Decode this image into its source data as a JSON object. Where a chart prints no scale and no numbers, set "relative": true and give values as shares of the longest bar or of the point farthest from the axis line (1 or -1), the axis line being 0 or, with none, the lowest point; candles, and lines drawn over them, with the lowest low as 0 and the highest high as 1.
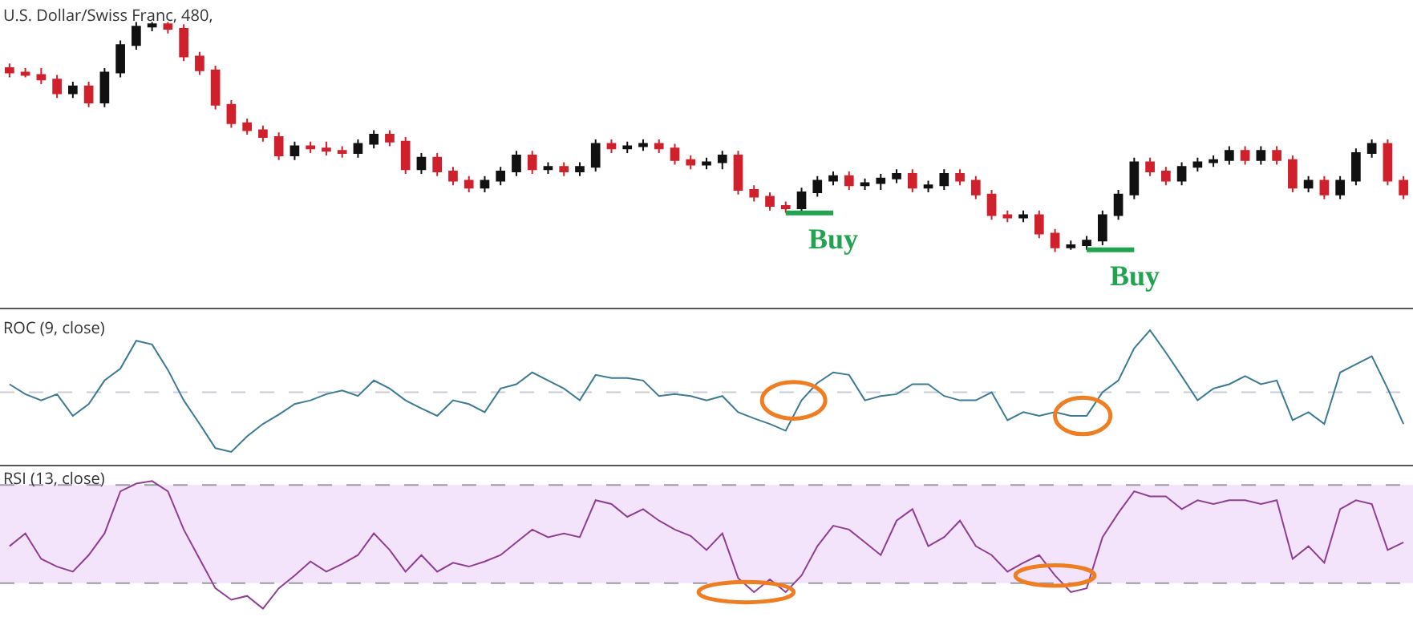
{
  "chart_data": [
    {
      "type": "candlestick",
      "title": "U.S. Dollar/Swiss Franc, 480,",
      "relative": true,
      "annotations": [
        "Buy",
        "Buy"
      ],
      "categories": [
        null,
        null,
        null,
        null,
        null,
        null,
        null,
        null,
        null,
        null,
        null,
        null,
        null,
        null,
        null,
        null,
        null,
        null,
        null,
        null,
        null,
        null,
        null,
        null,
        null,
        null,
        null,
        null,
        null,
        null,
        null,
        null,
        null,
        null,
        null,
        null,
        null,
        null,
        null,
        null,
        null,
        null,
        null,
        null,
        null,
        null,
        null,
        null,
        null,
        null,
        null,
        null,
        null,
        null,
        null,
        null,
        null,
        null,
        null,
        null,
        null,
        null,
        null,
        null,
        null,
        null,
        null,
        null,
        null,
        null,
        null,
        null,
        null,
        null,
        null,
        null,
        null,
        null,
        null,
        null,
        null,
        null,
        null,
        null,
        null,
        null,
        null,
        null,
        null
      ],
      "ohlc": [
        [
          0.8,
          0.82,
          0.76,
          0.78
        ],
        [
          0.78,
          0.8,
          0.76,
          0.77
        ],
        [
          0.77,
          0.8,
          0.73,
          0.75
        ],
        [
          0.75,
          0.77,
          0.67,
          0.69
        ],
        [
          0.69,
          0.74,
          0.67,
          0.72
        ],
        [
          0.72,
          0.74,
          0.63,
          0.65
        ],
        [
          0.65,
          0.8,
          0.63,
          0.78
        ],
        [
          0.78,
          0.92,
          0.76,
          0.9
        ],
        [
          0.9,
          1.0,
          0.88,
          0.98
        ],
        [
          0.98,
          1.0,
          0.96,
          0.99
        ],
        [
          0.99,
          1.0,
          0.95,
          0.97
        ],
        [
          0.97,
          0.99,
          0.83,
          0.85
        ],
        [
          0.85,
          0.87,
          0.77,
          0.79
        ],
        [
          0.79,
          0.81,
          0.62,
          0.64
        ],
        [
          0.64,
          0.66,
          0.54,
          0.56
        ],
        [
          0.56,
          0.58,
          0.51,
          0.53
        ],
        [
          0.53,
          0.55,
          0.48,
          0.5
        ],
        [
          0.5,
          0.52,
          0.4,
          0.42
        ],
        [
          0.42,
          0.48,
          0.4,
          0.46
        ],
        [
          0.46,
          0.48,
          0.43,
          0.45
        ],
        [
          0.45,
          0.48,
          0.42,
          0.44
        ],
        [
          0.44,
          0.46,
          0.41,
          0.43
        ],
        [
          0.43,
          0.49,
          0.41,
          0.47
        ],
        [
          0.47,
          0.53,
          0.45,
          0.51
        ],
        [
          0.51,
          0.53,
          0.46,
          0.48
        ],
        [
          0.48,
          0.5,
          0.34,
          0.36
        ],
        [
          0.36,
          0.43,
          0.34,
          0.41
        ],
        [
          0.41,
          0.43,
          0.33,
          0.35
        ],
        [
          0.35,
          0.37,
          0.29,
          0.31
        ],
        [
          0.31,
          0.33,
          0.26,
          0.28
        ],
        [
          0.28,
          0.33,
          0.26,
          0.31
        ],
        [
          0.31,
          0.37,
          0.29,
          0.35
        ],
        [
          0.35,
          0.44,
          0.33,
          0.42
        ],
        [
          0.42,
          0.44,
          0.34,
          0.36
        ],
        [
          0.36,
          0.39,
          0.34,
          0.37
        ],
        [
          0.37,
          0.39,
          0.33,
          0.35
        ],
        [
          0.35,
          0.39,
          0.33,
          0.37
        ],
        [
          0.37,
          0.49,
          0.35,
          0.47
        ],
        [
          0.47,
          0.49,
          0.43,
          0.45
        ],
        [
          0.45,
          0.48,
          0.43,
          0.46
        ],
        [
          0.46,
          0.49,
          0.44,
          0.47
        ],
        [
          0.47,
          0.49,
          0.43,
          0.45
        ],
        [
          0.45,
          0.47,
          0.38,
          0.4
        ],
        [
          0.4,
          0.42,
          0.36,
          0.38
        ],
        [
          0.38,
          0.41,
          0.36,
          0.39
        ],
        [
          0.39,
          0.44,
          0.36,
          0.42
        ],
        [
          0.42,
          0.44,
          0.25,
          0.27
        ],
        [
          0.27,
          0.29,
          0.22,
          0.24
        ],
        [
          0.24,
          0.26,
          0.18,
          0.2
        ],
        [
          0.2,
          0.22,
          0.17,
          0.19
        ],
        [
          0.19,
          0.28,
          0.17,
          0.26
        ],
        [
          0.26,
          0.33,
          0.24,
          0.31
        ],
        [
          0.31,
          0.35,
          0.29,
          0.33
        ],
        [
          0.33,
          0.35,
          0.27,
          0.29
        ],
        [
          0.29,
          0.32,
          0.27,
          0.3
        ],
        [
          0.3,
          0.34,
          0.27,
          0.32
        ],
        [
          0.32,
          0.36,
          0.3,
          0.34
        ],
        [
          0.34,
          0.36,
          0.26,
          0.28
        ],
        [
          0.28,
          0.31,
          0.26,
          0.29
        ],
        [
          0.29,
          0.36,
          0.27,
          0.34
        ],
        [
          0.34,
          0.36,
          0.29,
          0.31
        ],
        [
          0.31,
          0.33,
          0.23,
          0.25
        ],
        [
          0.25,
          0.27,
          0.14,
          0.16
        ],
        [
          0.16,
          0.18,
          0.13,
          0.15
        ],
        [
          0.15,
          0.18,
          0.13,
          0.16
        ],
        [
          0.16,
          0.18,
          0.06,
          0.08
        ],
        [
          0.08,
          0.1,
          0.0,
          0.02
        ],
        [
          0.02,
          0.05,
          0.01,
          0.03
        ],
        [
          0.03,
          0.07,
          0.01,
          0.05
        ],
        [
          0.05,
          0.18,
          0.03,
          0.16
        ],
        [
          0.16,
          0.27,
          0.14,
          0.25
        ],
        [
          0.25,
          0.41,
          0.23,
          0.39
        ],
        [
          0.39,
          0.41,
          0.33,
          0.35
        ],
        [
          0.35,
          0.37,
          0.29,
          0.31
        ],
        [
          0.31,
          0.39,
          0.29,
          0.37
        ],
        [
          0.37,
          0.41,
          0.35,
          0.39
        ],
        [
          0.39,
          0.42,
          0.37,
          0.4
        ],
        [
          0.4,
          0.46,
          0.38,
          0.44
        ],
        [
          0.44,
          0.46,
          0.38,
          0.4
        ],
        [
          0.4,
          0.46,
          0.38,
          0.44
        ],
        [
          0.44,
          0.46,
          0.38,
          0.4
        ],
        [
          0.4,
          0.42,
          0.26,
          0.28
        ],
        [
          0.28,
          0.33,
          0.26,
          0.31
        ],
        [
          0.31,
          0.33,
          0.23,
          0.25
        ],
        [
          0.25,
          0.33,
          0.23,
          0.31
        ],
        [
          0.31,
          0.45,
          0.29,
          0.43
        ],
        [
          0.43,
          0.49,
          0.41,
          0.47
        ],
        [
          0.47,
          0.49,
          0.29,
          0.31
        ],
        [
          0.31,
          0.33,
          0.23,
          0.25
        ]
      ]
    },
    {
      "type": "line",
      "title": "ROC (9, close)",
      "relative": true,
      "categories": [
        null,
        null,
        null,
        null,
        null,
        null,
        null,
        null,
        null,
        null,
        null,
        null,
        null,
        null,
        null,
        null,
        null,
        null,
        null,
        null,
        null,
        null,
        null,
        null,
        null,
        null,
        null,
        null,
        null,
        null,
        null,
        null,
        null,
        null,
        null,
        null,
        null,
        null,
        null,
        null,
        null,
        null,
        null,
        null,
        null,
        null,
        null,
        null,
        null,
        null,
        null,
        null,
        null,
        null,
        null,
        null,
        null,
        null,
        null,
        null,
        null,
        null,
        null,
        null,
        null,
        null,
        null,
        null,
        null,
        null,
        null,
        null,
        null,
        null,
        null,
        null,
        null,
        null,
        null,
        null,
        null,
        null,
        null,
        null,
        null,
        null,
        null,
        null,
        null
      ],
      "series": [
        {
          "color": "#3d7a94",
          "values": [
            0.13,
            -0.03,
            -0.13,
            -0.03,
            -0.38,
            -0.19,
            0.19,
            0.38,
            0.83,
            0.77,
            0.36,
            -0.13,
            -0.51,
            -0.9,
            -0.96,
            -0.71,
            -0.51,
            -0.36,
            -0.19,
            -0.13,
            -0.03,
            0.03,
            -0.06,
            0.19,
            0.06,
            -0.13,
            -0.26,
            -0.38,
            -0.13,
            -0.19,
            -0.32,
            0.06,
            0.13,
            0.32,
            0.19,
            0.06,
            -0.13,
            0.28,
            0.23,
            0.23,
            0.19,
            -0.06,
            -0.03,
            -0.06,
            -0.13,
            -0.06,
            -0.32,
            -0.42,
            -0.51,
            -0.62,
            -0.13,
            0.15,
            0.32,
            0.28,
            -0.13,
            -0.06,
            -0.03,
            0.13,
            0.13,
            -0.06,
            -0.13,
            -0.13,
            0,
            -0.45,
            -0.32,
            -0.38,
            -0.32,
            -0.38,
            -0.38,
            0,
            0.19,
            0.71,
            1,
            0.64,
            0.26,
            -0.13,
            0.06,
            0.13,
            0.26,
            0.13,
            0.19,
            -0.45,
            -0.32,
            -0.51,
            0.32,
            0.45,
            0.58,
            0.06,
            -0.51
          ]
        }
      ],
      "ref_lines": [
        {
          "axis": "y",
          "value": 0,
          "color": "#c8ccd4",
          "line_style": "dashed"
        }
      ]
    },
    {
      "type": "line",
      "title": "RSI (13, close)",
      "relative": true,
      "categories": [
        null,
        null,
        null,
        null,
        null,
        null,
        null,
        null,
        null,
        null,
        null,
        null,
        null,
        null,
        null,
        null,
        null,
        null,
        null,
        null,
        null,
        null,
        null,
        null,
        null,
        null,
        null,
        null,
        null,
        null,
        null,
        null,
        null,
        null,
        null,
        null,
        null,
        null,
        null,
        null,
        null,
        null,
        null,
        null,
        null,
        null,
        null,
        null,
        null,
        null,
        null,
        null,
        null,
        null,
        null,
        null,
        null,
        null,
        null,
        null,
        null,
        null,
        null,
        null,
        null,
        null,
        null,
        null,
        null,
        null,
        null,
        null,
        null,
        null,
        null,
        null,
        null,
        null,
        null,
        null,
        null,
        null,
        null,
        null,
        null,
        null,
        null,
        null,
        null
      ],
      "series": [
        {
          "color": "#8e3f93",
          "values": [
            0.49,
            0.59,
            0.39,
            0.33,
            0.29,
            0.42,
            0.59,
            0.92,
            0.98,
            1,
            0.92,
            0.62,
            0.39,
            0.16,
            0.07,
            0.1,
            0,
            0.16,
            0.26,
            0.37,
            0.29,
            0.35,
            0.42,
            0.59,
            0.46,
            0.29,
            0.42,
            0.29,
            0.36,
            0.33,
            0.37,
            0.42,
            0.52,
            0.62,
            0.56,
            0.59,
            0.56,
            0.85,
            0.82,
            0.72,
            0.78,
            0.69,
            0.62,
            0.57,
            0.46,
            0.59,
            0.24,
            0.13,
            0.23,
            0.13,
            0.26,
            0.49,
            0.65,
            0.62,
            0.52,
            0.42,
            0.69,
            0.78,
            0.49,
            0.56,
            0.69,
            0.49,
            0.42,
            0.29,
            0.36,
            0.42,
            0.26,
            0.13,
            0.16,
            0.56,
            0.75,
            0.92,
            0.88,
            0.88,
            0.78,
            0.85,
            0.82,
            0.85,
            0.85,
            0.82,
            0.85,
            0.39,
            0.49,
            0.36,
            0.78,
            0.85,
            0.82,
            0.46,
            0.52
          ]
        }
      ],
      "bands": [
        {
          "axis": "y",
          "from": 0.2,
          "to": 0.97,
          "color": "#f3e4fb"
        }
      ],
      "ref_lines": [
        {
          "axis": "y",
          "value": 0.2,
          "color": "#9a9aa8",
          "line_style": "dashed"
        },
        {
          "axis": "y",
          "value": 0.97,
          "color": "#9a9aa8",
          "line_style": "dashed"
        }
      ]
    }
  ]
}
